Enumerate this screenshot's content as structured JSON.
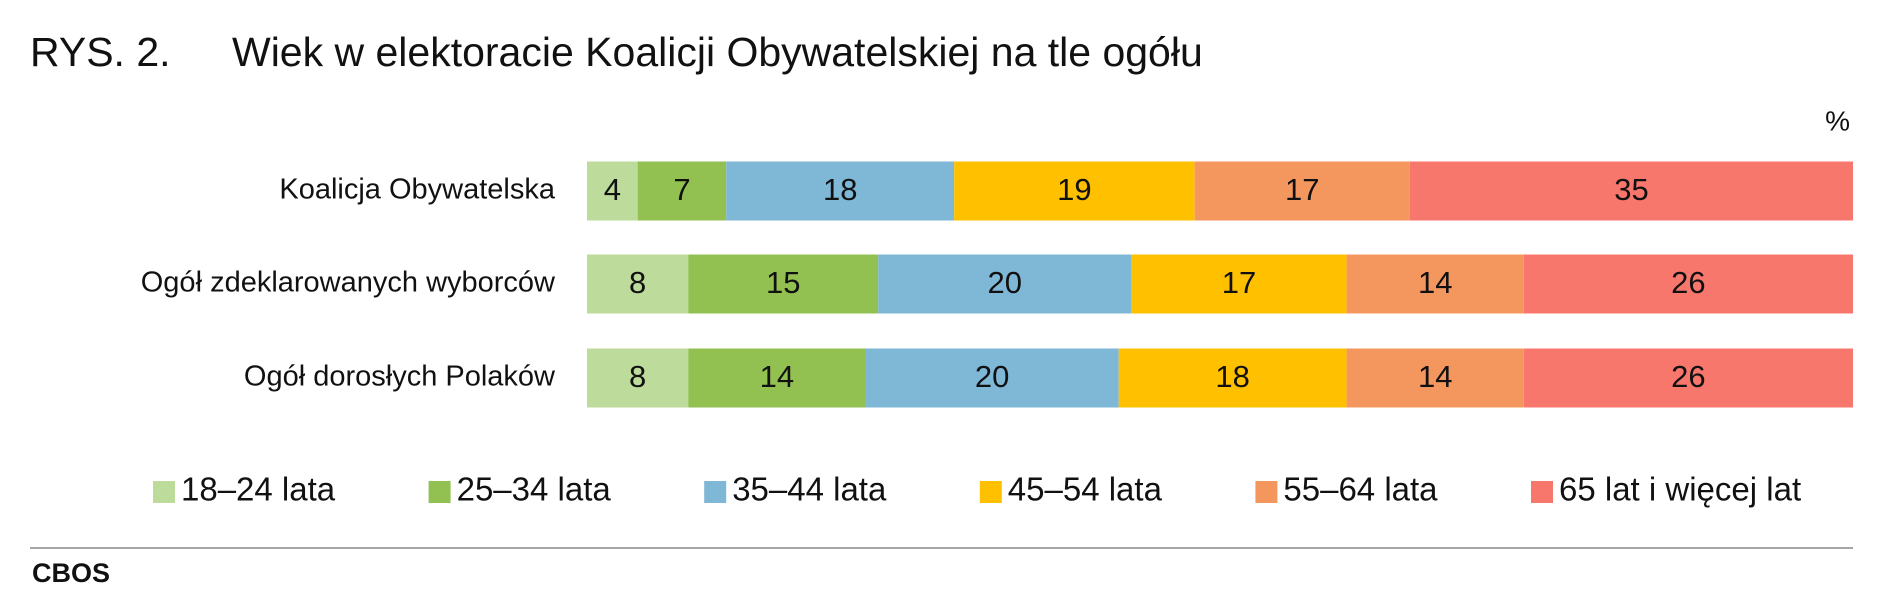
{
  "chart_data": {
    "type": "stacked_bar_horizontal",
    "figure_label": "RYS. 2.",
    "title": "Wiek w elektoracie Koalicji Obywatelskiej na tle ogółu",
    "unit_label": "%",
    "source": "CBOS",
    "categories": [
      "Koalicja Obywatelska",
      "Ogół zdeklarowanych wyborców",
      "Ogół dorosłych Polaków"
    ],
    "xlim": [
      0,
      100
    ],
    "legend": "bottom",
    "series": [
      {
        "name": "18–24 lata",
        "color": "#bddb9a",
        "values": [
          4,
          8,
          8
        ]
      },
      {
        "name": "25–34 lata",
        "color": "#92c152",
        "values": [
          7,
          15,
          14
        ]
      },
      {
        "name": "35–44 lata",
        "color": "#7fb7d6",
        "values": [
          18,
          20,
          20
        ]
      },
      {
        "name": "45–54 lata",
        "color": "#ffc000",
        "values": [
          19,
          17,
          18
        ]
      },
      {
        "name": "55–64 lata",
        "color": "#f4975f",
        "values": [
          17,
          14,
          14
        ]
      },
      {
        "name": "65 lat i więcej lat",
        "color": "#f8776d",
        "values": [
          35,
          26,
          26
        ]
      }
    ]
  }
}
